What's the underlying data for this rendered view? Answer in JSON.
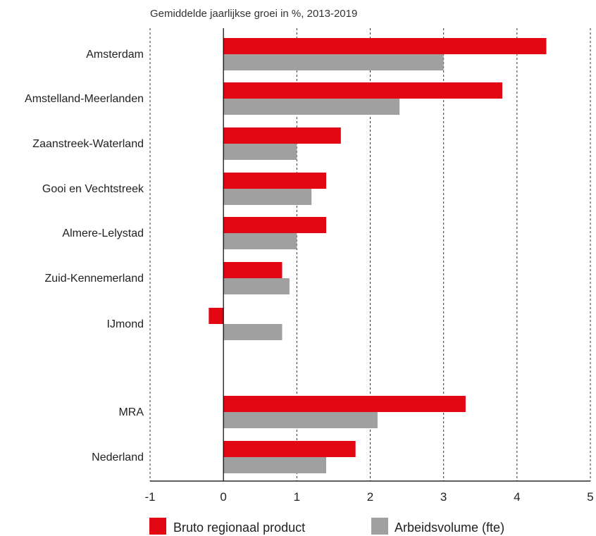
{
  "chart_data": {
    "type": "bar",
    "orientation": "horizontal",
    "subtitle": "Gemiddelde jaarlijkse groei in %, 2013-2019",
    "categories": [
      "Amsterdam",
      "Amstelland-Meerlanden",
      "Zaanstreek-Waterland",
      "Gooi en Vechtstreek",
      "Almere-Lelystad",
      "Zuid-Kennemerland",
      "IJmond",
      "MRA",
      "Nederland"
    ],
    "series": [
      {
        "name": "Bruto regionaal product",
        "color": "#e30613",
        "values": [
          4.4,
          3.8,
          1.6,
          1.4,
          1.4,
          0.8,
          -0.2,
          3.3,
          1.8
        ]
      },
      {
        "name": "Arbeidsvolume (fte)",
        "color": "#a0a0a0",
        "values": [
          3.0,
          2.4,
          1.0,
          1.2,
          1.0,
          0.9,
          0.8,
          2.1,
          1.4
        ]
      }
    ],
    "xlim": [
      -1,
      5
    ],
    "xticks": [
      "-1",
      "0",
      "1",
      "2",
      "3",
      "4",
      "5"
    ],
    "grid": "vertical dashed",
    "legend": "bottom"
  }
}
